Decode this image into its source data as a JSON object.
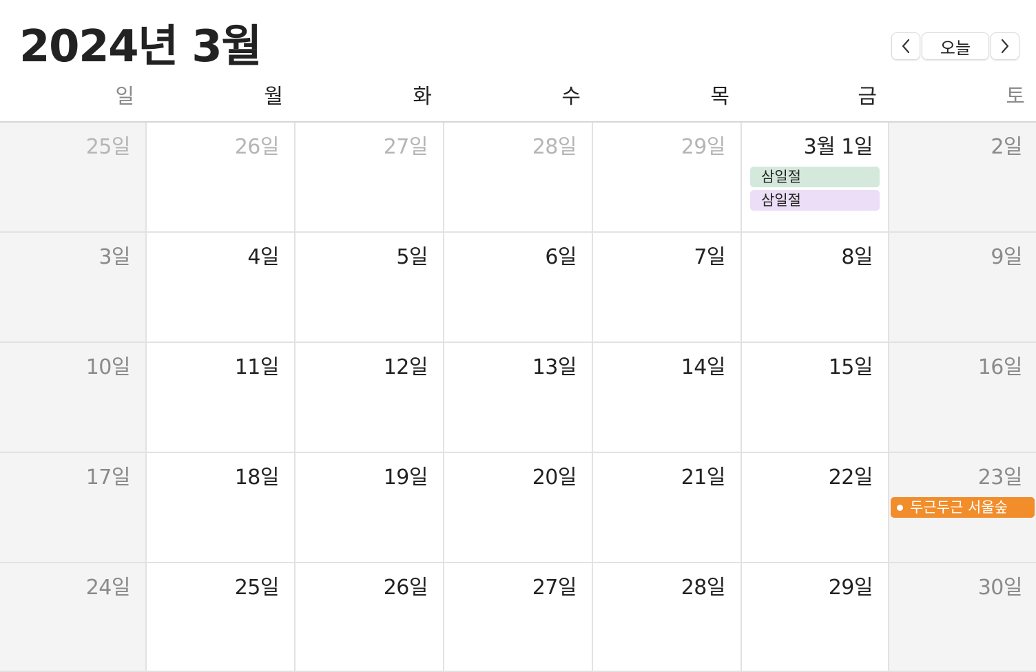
{
  "header": {
    "title": "2024년 3월",
    "prev_icon": "chevron-left-icon",
    "today_label": "오늘",
    "next_icon": "chevron-right-icon"
  },
  "weekdays": [
    "일",
    "월",
    "화",
    "수",
    "목",
    "금",
    "토"
  ],
  "weeks": [
    [
      {
        "label": "25일",
        "other_month": true
      },
      {
        "label": "26일",
        "other_month": true
      },
      {
        "label": "27일",
        "other_month": true
      },
      {
        "label": "28일",
        "other_month": true
      },
      {
        "label": "29일",
        "other_month": true
      },
      {
        "label": "3월 1일",
        "events": [
          {
            "title": "삼일절",
            "color": "#d4e9dc"
          },
          {
            "title": "삼일절",
            "color": "#ebdef6"
          }
        ]
      },
      {
        "label": "2일"
      }
    ],
    [
      {
        "label": "3일"
      },
      {
        "label": "4일"
      },
      {
        "label": "5일"
      },
      {
        "label": "6일"
      },
      {
        "label": "7일"
      },
      {
        "label": "8일"
      },
      {
        "label": "9일"
      }
    ],
    [
      {
        "label": "10일"
      },
      {
        "label": "11일"
      },
      {
        "label": "12일"
      },
      {
        "label": "13일"
      },
      {
        "label": "14일"
      },
      {
        "label": "15일"
      },
      {
        "label": "16일"
      }
    ],
    [
      {
        "label": "17일"
      },
      {
        "label": "18일"
      },
      {
        "label": "19일"
      },
      {
        "label": "20일"
      },
      {
        "label": "21일"
      },
      {
        "label": "22일"
      },
      {
        "label": "23일",
        "events": [
          {
            "title": "두근두근 서울숲",
            "color": "#f28d2c"
          }
        ]
      }
    ],
    [
      {
        "label": "24일"
      },
      {
        "label": "25일"
      },
      {
        "label": "26일"
      },
      {
        "label": "27일"
      },
      {
        "label": "28일"
      },
      {
        "label": "29일"
      },
      {
        "label": "30일"
      }
    ]
  ],
  "colors": {
    "weekend_bg": "#f4f4f4",
    "event_green": "#d4e9dc",
    "event_purple": "#ebdef6",
    "event_orange": "#f28d2c"
  }
}
